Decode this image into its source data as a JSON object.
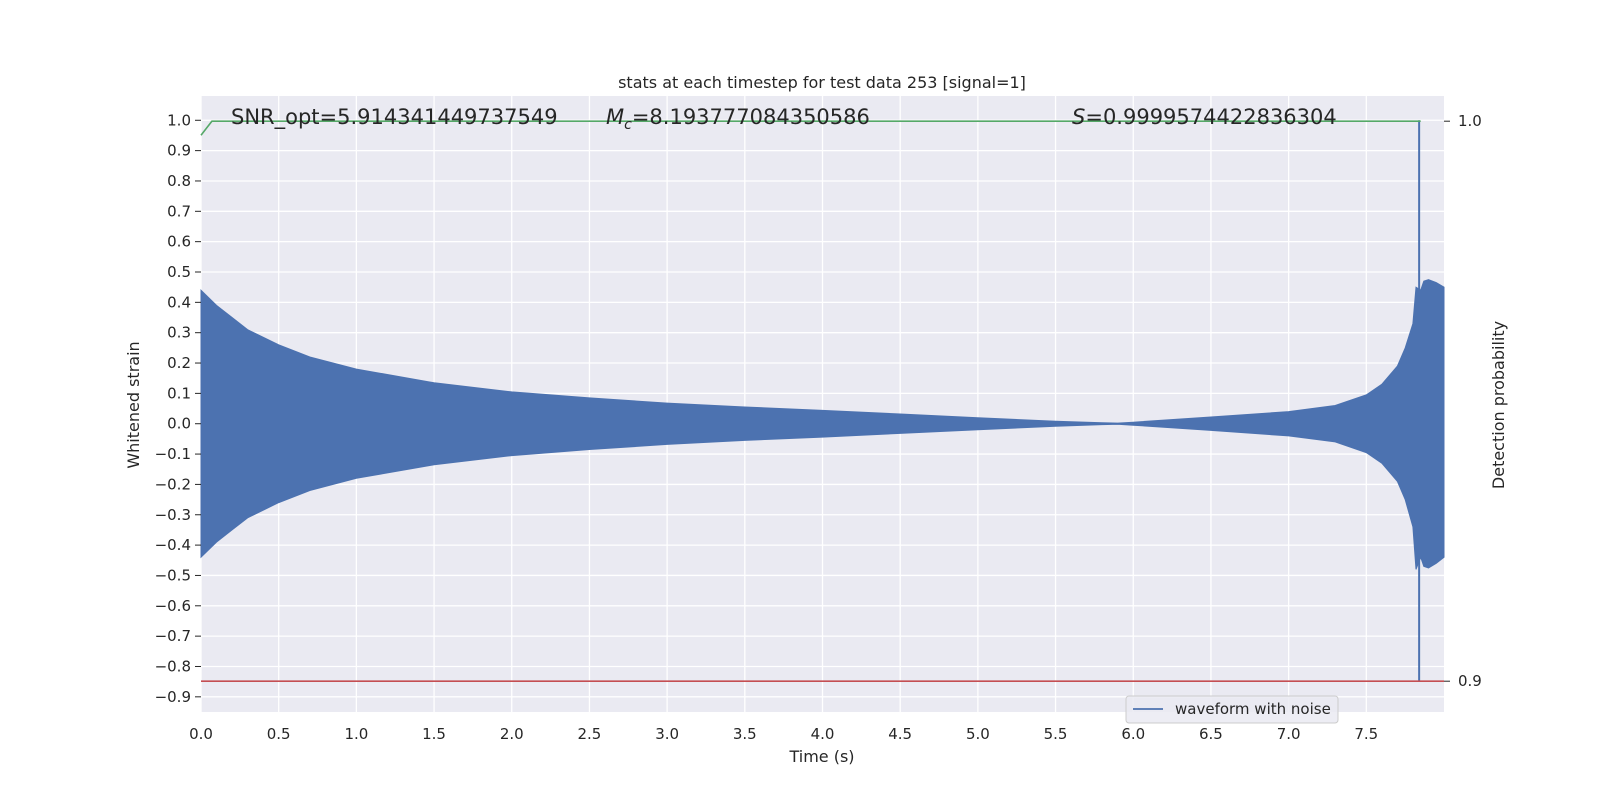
{
  "chart_data": {
    "type": "line",
    "title": "stats at each timestep for test data 253 [signal=1]",
    "xlabel": "Time (s)",
    "ylabel": "Whitened strain",
    "y2label": "Detection probability",
    "xlim": [
      0.0,
      8.0
    ],
    "ylim": [
      -0.95,
      1.08
    ],
    "y2lim": [
      0.8945,
      1.0045
    ],
    "x_ticks": [
      "0.0",
      "0.5",
      "1.0",
      "1.5",
      "2.0",
      "2.5",
      "3.0",
      "3.5",
      "4.0",
      "4.5",
      "5.0",
      "5.5",
      "6.0",
      "6.5",
      "7.0",
      "7.5"
    ],
    "y_ticks": [
      "1.0",
      "0.9",
      "0.8",
      "0.7",
      "0.6",
      "0.5",
      "0.4",
      "0.3",
      "0.2",
      "0.1",
      "0.0",
      "−0.1",
      "−0.2",
      "−0.3",
      "−0.4",
      "−0.5",
      "−0.6",
      "−0.7",
      "−0.8",
      "−0.9"
    ],
    "y2_ticks": [
      "1.0",
      "0.9"
    ],
    "grid": true,
    "legend": {
      "placement": "bottom-right",
      "entries": [
        "waveform with noise"
      ]
    },
    "annotations": {
      "snr": "SNR_opt=5.914341449737549",
      "mc_symbol": "M",
      "mc_sub": "c",
      "mc_value": "=8.193777084350586",
      "s_symbol": "S",
      "s_value": "=0.9999574422836304"
    },
    "series": [
      {
        "name": "waveform with noise",
        "axis": "left",
        "kind": "envelope",
        "color": "#4c72b0",
        "x": [
          0.0,
          0.1,
          0.2,
          0.3,
          0.5,
          0.7,
          1.0,
          1.5,
          2.0,
          2.5,
          3.0,
          3.5,
          4.0,
          4.5,
          5.0,
          5.5,
          5.8,
          5.9,
          6.0,
          6.5,
          7.0,
          7.3,
          7.5,
          7.6,
          7.7,
          7.75,
          7.8,
          7.82,
          7.85,
          7.87,
          7.9,
          7.95,
          8.0
        ],
        "upper": [
          0.44,
          0.39,
          0.35,
          0.31,
          0.26,
          0.22,
          0.18,
          0.135,
          0.105,
          0.085,
          0.068,
          0.055,
          0.044,
          0.032,
          0.02,
          0.008,
          0.003,
          0.002,
          0.005,
          0.022,
          0.04,
          0.06,
          0.095,
          0.13,
          0.19,
          0.25,
          0.33,
          0.45,
          0.44,
          0.47,
          0.475,
          0.465,
          0.45
        ],
        "lower": [
          -0.44,
          -0.39,
          -0.35,
          -0.31,
          -0.26,
          -0.22,
          -0.18,
          -0.135,
          -0.105,
          -0.085,
          -0.068,
          -0.055,
          -0.044,
          -0.032,
          -0.02,
          -0.008,
          -0.003,
          -0.002,
          -0.005,
          -0.022,
          -0.04,
          -0.06,
          -0.095,
          -0.13,
          -0.19,
          -0.25,
          -0.34,
          -0.48,
          -0.44,
          -0.47,
          -0.475,
          -0.46,
          -0.44
        ],
        "spike": {
          "x": 7.84,
          "max": 1.0,
          "min": -0.85
        }
      },
      {
        "name": "detection probability",
        "axis": "right",
        "color": "#55a868",
        "x": [
          0.0,
          0.07,
          7.85
        ],
        "y": [
          0.9975,
          1.0,
          1.0
        ]
      },
      {
        "name": "threshold",
        "axis": "right",
        "color": "#c44e52",
        "x": [
          0.0,
          8.0
        ],
        "y": [
          0.9,
          0.9
        ]
      }
    ]
  }
}
